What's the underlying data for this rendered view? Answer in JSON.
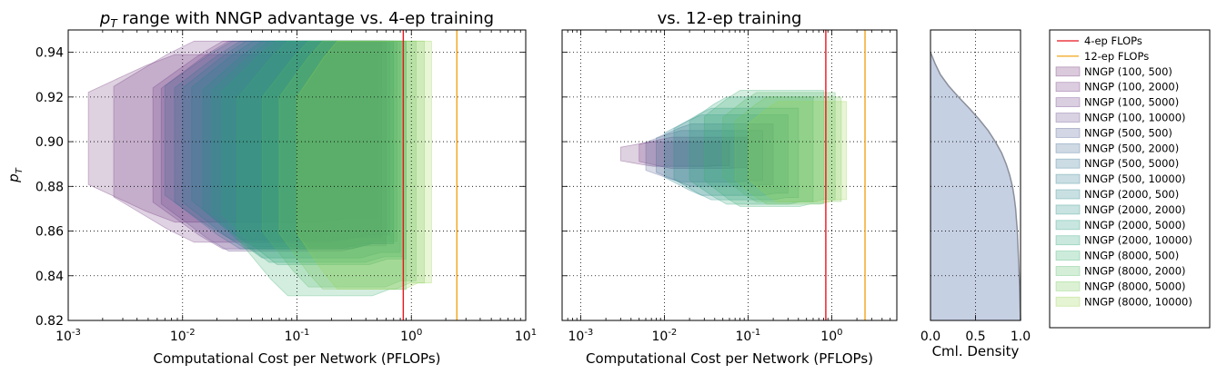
{
  "chart_data": [
    {
      "type": "area",
      "title": "p_T range with NNGP advantage vs. 4-ep training",
      "title_math": "p",
      "title_math_sub": "T",
      "title_rest": " range with NNGP advantage vs. 4-ep training",
      "xlabel": "Computational Cost per Network (PFLOPs)",
      "ylabel_math": "p",
      "ylabel_sub": "T",
      "xscale": "log",
      "xlim": [
        0.001,
        10
      ],
      "ylim": [
        0.82,
        0.95
      ],
      "xticks": [
        {
          "base": "10",
          "exp": "-3"
        },
        {
          "base": "10",
          "exp": "-2"
        },
        {
          "base": "10",
          "exp": "-1"
        },
        {
          "base": "10",
          "exp": "0"
        },
        {
          "base": "10",
          "exp": "1"
        }
      ],
      "yticks": [
        "0.82",
        "0.84",
        "0.86",
        "0.88",
        "0.90",
        "0.92",
        "0.94"
      ],
      "grid": true,
      "vlines": [
        {
          "name": "4-ep FLOPs",
          "x": 0.85
        },
        {
          "name": "12-ep FLOPs",
          "x": 2.5
        }
      ],
      "regions": [
        {
          "name": "NNGP (100, 500)",
          "x_start": 0.0015,
          "x_end": 0.5,
          "top": 0.939,
          "bottom": 0.864
        },
        {
          "name": "NNGP (100, 2000)",
          "x_start": 0.0025,
          "x_end": 0.55,
          "top": 0.945,
          "bottom": 0.855
        },
        {
          "name": "NNGP (100, 5000)",
          "x_start": 0.0055,
          "x_end": 0.6,
          "top": 0.945,
          "bottom": 0.852
        },
        {
          "name": "NNGP (100, 10000)",
          "x_start": 0.0065,
          "x_end": 0.6,
          "top": 0.945,
          "bottom": 0.851
        },
        {
          "name": "NNGP (500, 2000)",
          "x_start": 0.007,
          "x_end": 0.65,
          "top": 0.945,
          "bottom": 0.856
        },
        {
          "name": "NNGP (500, 5000)",
          "x_start": 0.0085,
          "x_end": 0.7,
          "top": 0.945,
          "bottom": 0.852
        },
        {
          "name": "NNGP (500, 10000)",
          "x_start": 0.01,
          "x_end": 0.7,
          "top": 0.945,
          "bottom": 0.852
        },
        {
          "name": "NNGP (2000, 500)",
          "x_start": 0.012,
          "x_end": 0.75,
          "top": 0.945,
          "bottom": 0.853
        },
        {
          "name": "NNGP (2000, 2000)",
          "x_start": 0.015,
          "x_end": 0.8,
          "top": 0.945,
          "bottom": 0.848
        },
        {
          "name": "NNGP (2000, 5000)",
          "x_start": 0.018,
          "x_end": 0.85,
          "top": 0.945,
          "bottom": 0.846
        },
        {
          "name": "NNGP (2000, 10000)",
          "x_start": 0.022,
          "x_end": 0.9,
          "top": 0.945,
          "bottom": 0.845
        },
        {
          "name": "NNGP (8000, 500)",
          "x_start": 0.03,
          "x_end": 0.9,
          "top": 0.945,
          "bottom": 0.831
        },
        {
          "name": "NNGP (8000, 2000)",
          "x_start": 0.05,
          "x_end": 1.1,
          "top": 0.945,
          "bottom": 0.835
        },
        {
          "name": "NNGP (8000, 5000)",
          "x_start": 0.07,
          "x_end": 1.3,
          "top": 0.945,
          "bottom": 0.834
        },
        {
          "name": "NNGP (8000, 10000)",
          "x_start": 0.1,
          "x_end": 1.5,
          "top": 0.945,
          "bottom": 0.834
        }
      ]
    },
    {
      "type": "area",
      "title": "vs. 12-ep training",
      "xlabel": "Computational Cost per Network (PFLOPs)",
      "xscale": "log",
      "xlim": [
        0.0006,
        6
      ],
      "ylim": [
        0.82,
        0.95
      ],
      "xticks": [
        {
          "base": "10",
          "exp": "-3"
        },
        {
          "base": "10",
          "exp": "-2"
        },
        {
          "base": "10",
          "exp": "-1"
        },
        {
          "base": "10",
          "exp": "0"
        }
      ],
      "grid": true,
      "vlines": [
        {
          "name": "4-ep FLOPs",
          "x": 0.85
        },
        {
          "name": "12-ep FLOPs",
          "x": 2.5
        }
      ],
      "regions": [
        {
          "name": "NNGP (100, 500)",
          "x_start": 0.003,
          "x_end": 0.06,
          "top": 0.9,
          "bottom": 0.889
        },
        {
          "name": "NNGP (100, 2000)",
          "x_start": 0.005,
          "x_end": 0.1,
          "top": 0.902,
          "bottom": 0.888
        },
        {
          "name": "NNGP (500, 500)",
          "x_start": 0.006,
          "x_end": 0.15,
          "top": 0.905,
          "bottom": 0.882
        },
        {
          "name": "NNGP (500, 2000)",
          "x_start": 0.008,
          "x_end": 0.2,
          "top": 0.908,
          "bottom": 0.88
        },
        {
          "name": "NNGP (2000, 500)",
          "x_start": 0.01,
          "x_end": 0.3,
          "top": 0.912,
          "bottom": 0.876
        },
        {
          "name": "NNGP (2000, 2000)",
          "x_start": 0.013,
          "x_end": 0.4,
          "top": 0.915,
          "bottom": 0.874
        },
        {
          "name": "NNGP (2000, 10000)",
          "x_start": 0.02,
          "x_end": 0.6,
          "top": 0.92,
          "bottom": 0.872
        },
        {
          "name": "NNGP (8000, 500)",
          "x_start": 0.03,
          "x_end": 0.8,
          "top": 0.923,
          "bottom": 0.871
        },
        {
          "name": "NNGP (8000, 2000)",
          "x_start": 0.05,
          "x_end": 1.1,
          "top": 0.922,
          "bottom": 0.873
        },
        {
          "name": "NNGP (8000, 5000)",
          "x_start": 0.07,
          "x_end": 1.3,
          "top": 0.92,
          "bottom": 0.872
        },
        {
          "name": "NNGP (8000, 10000)",
          "x_start": 0.1,
          "x_end": 1.5,
          "top": 0.918,
          "bottom": 0.873
        }
      ]
    },
    {
      "type": "area",
      "title": "",
      "xlabel": "Cml. Density",
      "xlim": [
        0.0,
        1.0
      ],
      "ylim": [
        0.82,
        0.95
      ],
      "xticks": [
        "0.0",
        "0.5",
        "1.0"
      ],
      "grid": true,
      "color": "#c6d0e3",
      "curve_y": [
        0.94,
        0.935,
        0.93,
        0.925,
        0.92,
        0.915,
        0.91,
        0.905,
        0.9,
        0.895,
        0.89,
        0.885,
        0.88,
        0.875,
        0.87,
        0.865,
        0.86,
        0.855,
        0.85,
        0.845,
        0.84,
        0.835,
        0.83,
        0.825,
        0.82
      ],
      "curve_x": [
        0.0,
        0.05,
        0.11,
        0.2,
        0.31,
        0.43,
        0.54,
        0.64,
        0.72,
        0.79,
        0.84,
        0.88,
        0.91,
        0.93,
        0.945,
        0.955,
        0.965,
        0.97,
        0.975,
        0.98,
        0.985,
        0.99,
        0.993,
        0.996,
        1.0
      ]
    }
  ],
  "legend": {
    "items": [
      {
        "label": "4-ep FLOPs",
        "kind": "line",
        "color": "#e8141d"
      },
      {
        "label": "12-ep FLOPs",
        "kind": "line",
        "color": "#f6a319"
      },
      {
        "label": "NNGP (100, 500)",
        "kind": "patch",
        "color": "#6a2c74"
      },
      {
        "label": "NNGP (100, 2000)",
        "kind": "patch",
        "color": "#6e347e"
      },
      {
        "label": "NNGP (100, 5000)",
        "kind": "patch",
        "color": "#6c3d86"
      },
      {
        "label": "NNGP (100, 10000)",
        "kind": "patch",
        "color": "#644a8d"
      },
      {
        "label": "NNGP (500, 500)",
        "kind": "patch",
        "color": "#515a92"
      },
      {
        "label": "NNGP (500, 2000)",
        "kind": "patch",
        "color": "#3e6893"
      },
      {
        "label": "NNGP (500, 5000)",
        "kind": "patch",
        "color": "#357293"
      },
      {
        "label": "NNGP (500, 10000)",
        "kind": "patch",
        "color": "#2d7c90"
      },
      {
        "label": "NNGP (2000, 500)",
        "kind": "patch",
        "color": "#28858b"
      },
      {
        "label": "NNGP (2000, 2000)",
        "kind": "patch",
        "color": "#258f86"
      },
      {
        "label": "NNGP (2000, 5000)",
        "kind": "patch",
        "color": "#259a80"
      },
      {
        "label": "NNGP (2000, 10000)",
        "kind": "patch",
        "color": "#2aa478"
      },
      {
        "label": "NNGP (8000, 500)",
        "kind": "patch",
        "color": "#38ae6f"
      },
      {
        "label": "NNGP (8000, 2000)",
        "kind": "patch",
        "color": "#53ba63"
      },
      {
        "label": "NNGP (8000, 5000)",
        "kind": "patch",
        "color": "#72c655"
      },
      {
        "label": "NNGP (8000, 10000)",
        "kind": "patch",
        "color": "#97d34b"
      }
    ]
  }
}
